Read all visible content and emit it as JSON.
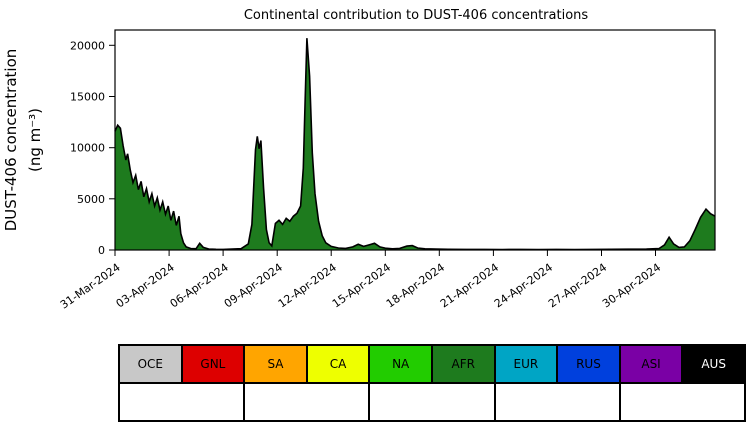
{
  "chart_data": {
    "type": "area",
    "title": "Continental contribution to DUST-406 concentrations",
    "ylabel_line1": "DUST-406 concentration",
    "ylabel_line2": "(ng m⁻³)",
    "x_unit": "days since 31-Mar-2024",
    "x_range": [
      0,
      33.3
    ],
    "y_range": [
      0,
      21500
    ],
    "y_ticks": [
      0,
      5000,
      10000,
      15000,
      20000
    ],
    "x_ticks": [
      {
        "day": 0,
        "label": "31-Mar-2024"
      },
      {
        "day": 3,
        "label": "03-Apr-2024"
      },
      {
        "day": 6,
        "label": "06-Apr-2024"
      },
      {
        "day": 9,
        "label": "09-Apr-2024"
      },
      {
        "day": 12,
        "label": "12-Apr-2024"
      },
      {
        "day": 15,
        "label": "15-Apr-2024"
      },
      {
        "day": 18,
        "label": "18-Apr-2024"
      },
      {
        "day": 21,
        "label": "21-Apr-2024"
      },
      {
        "day": 24,
        "label": "24-Apr-2024"
      },
      {
        "day": 27,
        "label": "27-Apr-2024"
      },
      {
        "day": 30,
        "label": "30-Apr-2024"
      }
    ],
    "grid": false,
    "legend_position": "bottom",
    "outline_color": "#000000",
    "series": [
      {
        "name": "AFR",
        "color": "#1E7B1E",
        "points": [
          [
            0,
            11600
          ],
          [
            0.15,
            12200
          ],
          [
            0.3,
            11900
          ],
          [
            0.45,
            10200
          ],
          [
            0.6,
            8800
          ],
          [
            0.7,
            9400
          ],
          [
            0.85,
            7800
          ],
          [
            1.0,
            6600
          ],
          [
            1.15,
            7300
          ],
          [
            1.3,
            5900
          ],
          [
            1.45,
            6700
          ],
          [
            1.6,
            5200
          ],
          [
            1.75,
            6000
          ],
          [
            1.9,
            4700
          ],
          [
            2.05,
            5500
          ],
          [
            2.2,
            4300
          ],
          [
            2.35,
            5100
          ],
          [
            2.5,
            3900
          ],
          [
            2.65,
            4700
          ],
          [
            2.8,
            3500
          ],
          [
            2.95,
            4300
          ],
          [
            3.1,
            2900
          ],
          [
            3.25,
            3800
          ],
          [
            3.4,
            2400
          ],
          [
            3.55,
            3300
          ],
          [
            3.65,
            1600
          ],
          [
            3.8,
            700
          ],
          [
            3.95,
            300
          ],
          [
            4.2,
            150
          ],
          [
            4.5,
            130
          ],
          [
            4.7,
            650
          ],
          [
            4.9,
            250
          ],
          [
            5.2,
            100
          ],
          [
            5.6,
            70
          ],
          [
            6.0,
            60
          ],
          [
            6.5,
            90
          ],
          [
            7.0,
            130
          ],
          [
            7.4,
            600
          ],
          [
            7.6,
            2500
          ],
          [
            7.8,
            9800
          ],
          [
            7.9,
            11100
          ],
          [
            8.0,
            9900
          ],
          [
            8.1,
            10700
          ],
          [
            8.25,
            6000
          ],
          [
            8.4,
            2000
          ],
          [
            8.55,
            700
          ],
          [
            8.7,
            400
          ],
          [
            8.9,
            2600
          ],
          [
            9.1,
            2900
          ],
          [
            9.3,
            2500
          ],
          [
            9.5,
            3100
          ],
          [
            9.7,
            2800
          ],
          [
            9.9,
            3300
          ],
          [
            10.1,
            3600
          ],
          [
            10.3,
            4300
          ],
          [
            10.45,
            8000
          ],
          [
            10.55,
            14500
          ],
          [
            10.65,
            20700
          ],
          [
            10.8,
            17000
          ],
          [
            10.95,
            9500
          ],
          [
            11.1,
            5500
          ],
          [
            11.3,
            2800
          ],
          [
            11.5,
            1400
          ],
          [
            11.7,
            700
          ],
          [
            12.0,
            350
          ],
          [
            12.4,
            200
          ],
          [
            12.8,
            160
          ],
          [
            13.2,
            300
          ],
          [
            13.5,
            560
          ],
          [
            13.8,
            350
          ],
          [
            14.1,
            500
          ],
          [
            14.4,
            650
          ],
          [
            14.7,
            300
          ],
          [
            15.0,
            180
          ],
          [
            15.4,
            120
          ],
          [
            15.8,
            160
          ],
          [
            16.2,
            380
          ],
          [
            16.5,
            430
          ],
          [
            16.8,
            200
          ],
          [
            17.2,
            120
          ],
          [
            17.8,
            90
          ],
          [
            18.5,
            70
          ],
          [
            19.5,
            60
          ],
          [
            20.5,
            60
          ],
          [
            21.5,
            50
          ],
          [
            22.5,
            60
          ],
          [
            23.5,
            50
          ],
          [
            24.5,
            60
          ],
          [
            25.5,
            50
          ],
          [
            26.5,
            60
          ],
          [
            27.5,
            70
          ],
          [
            28.5,
            80
          ],
          [
            29.5,
            90
          ],
          [
            30.2,
            150
          ],
          [
            30.5,
            500
          ],
          [
            30.75,
            1250
          ],
          [
            31.0,
            600
          ],
          [
            31.3,
            250
          ],
          [
            31.6,
            300
          ],
          [
            31.9,
            900
          ],
          [
            32.2,
            2000
          ],
          [
            32.5,
            3200
          ],
          [
            32.8,
            4000
          ],
          [
            33.05,
            3550
          ],
          [
            33.3,
            3300
          ]
        ]
      },
      {
        "name": "CA",
        "color": "#EEFF00",
        "points": [
          [
            6.2,
            0
          ],
          [
            6.35,
            140
          ],
          [
            6.55,
            140
          ],
          [
            6.7,
            0
          ]
        ]
      }
    ]
  },
  "legend": {
    "footer_cells": 5,
    "items": [
      {
        "label": "OCE",
        "color": "#C8C8C8",
        "text_color": "#000000"
      },
      {
        "label": "GNL",
        "color": "#DD0000",
        "text_color": "#000000"
      },
      {
        "label": "SA",
        "color": "#FFA500",
        "text_color": "#000000"
      },
      {
        "label": "CA",
        "color": "#EEFF00",
        "text_color": "#000000"
      },
      {
        "label": "NA",
        "color": "#22CC00",
        "text_color": "#000000"
      },
      {
        "label": "AFR",
        "color": "#1E7B1E",
        "text_color": "#000000"
      },
      {
        "label": "EUR",
        "color": "#00A5C5",
        "text_color": "#000000"
      },
      {
        "label": "RUS",
        "color": "#0040DD",
        "text_color": "#000000"
      },
      {
        "label": "ASI",
        "color": "#7A00A5",
        "text_color": "#000000"
      },
      {
        "label": "AUS",
        "color": "#000000",
        "text_color": "#FFFFFF"
      }
    ]
  }
}
